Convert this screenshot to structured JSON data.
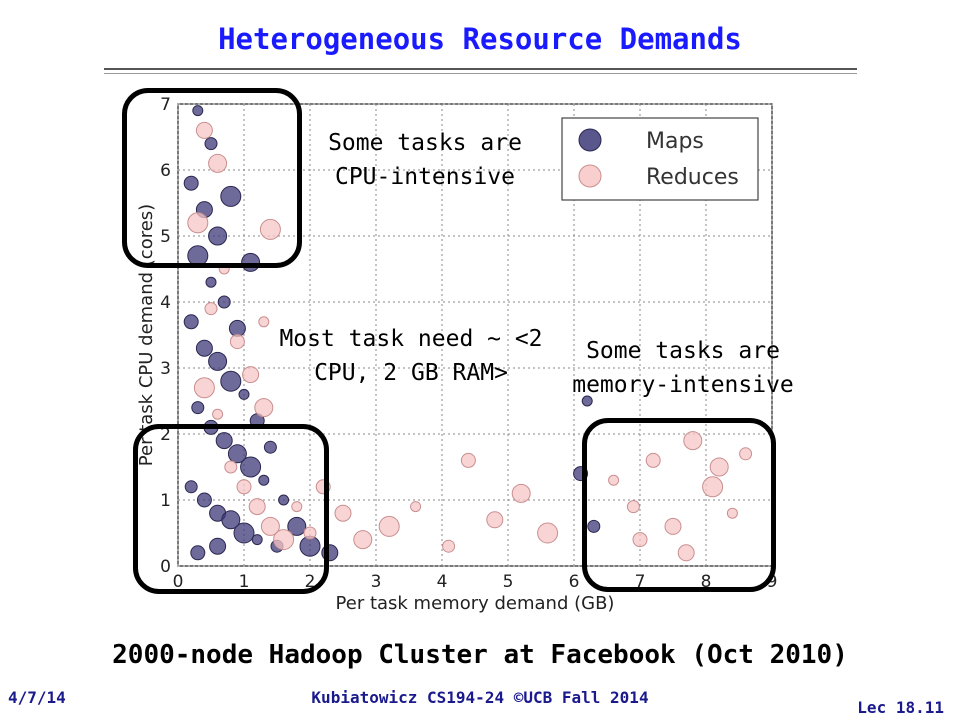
{
  "slide": {
    "title": "Heterogeneous Resource Demands",
    "subtitle": "2000-node Hadoop Cluster at Facebook (Oct 2010)",
    "footer_left": "4/7/14",
    "footer_center": "Kubiatowicz CS194-24 ©UCB Fall 2014",
    "footer_right": "Lec 18.11"
  },
  "annotations": {
    "cpu": "Some tasks are CPU-intensive",
    "most": "Most task need ~ <2 CPU, 2 GB RAM>",
    "memory": "Some tasks are memory-intensive"
  },
  "colors": {
    "maps": "#3d3a78",
    "reduces": "#f7c6c6",
    "box": "#000000",
    "title": "#1a1aff"
  },
  "chart_data": {
    "type": "scatter",
    "xlabel": "Per task memory demand (GB)",
    "ylabel": "Per task CPU demand (cores)",
    "xlim": [
      0,
      9
    ],
    "ylim": [
      0,
      7
    ],
    "xticks": [
      0,
      1,
      2,
      3,
      4,
      5,
      6,
      7,
      8,
      9
    ],
    "yticks": [
      0,
      1,
      2,
      3,
      4,
      5,
      6,
      7
    ],
    "grid": true,
    "legend_position": "top-right",
    "series": [
      {
        "name": "Maps",
        "points": [
          [
            0.3,
            6.9
          ],
          [
            0.5,
            6.4
          ],
          [
            0.2,
            5.8
          ],
          [
            0.4,
            5.4
          ],
          [
            0.6,
            5.0
          ],
          [
            0.3,
            4.7
          ],
          [
            0.5,
            4.3
          ],
          [
            0.7,
            4.0
          ],
          [
            0.2,
            3.7
          ],
          [
            0.4,
            3.3
          ],
          [
            0.6,
            3.1
          ],
          [
            0.8,
            2.8
          ],
          [
            1.0,
            2.6
          ],
          [
            0.3,
            2.4
          ],
          [
            0.5,
            2.1
          ],
          [
            0.7,
            1.9
          ],
          [
            0.9,
            1.7
          ],
          [
            1.1,
            1.5
          ],
          [
            1.3,
            1.3
          ],
          [
            0.2,
            1.2
          ],
          [
            0.4,
            1.0
          ],
          [
            0.6,
            0.8
          ],
          [
            0.8,
            0.7
          ],
          [
            1.0,
            0.5
          ],
          [
            1.2,
            0.4
          ],
          [
            1.5,
            0.3
          ],
          [
            0.3,
            0.2
          ],
          [
            0.6,
            0.3
          ],
          [
            1.8,
            0.6
          ],
          [
            2.0,
            0.3
          ],
          [
            1.6,
            1.0
          ],
          [
            1.4,
            1.8
          ],
          [
            1.2,
            2.2
          ],
          [
            0.9,
            3.6
          ],
          [
            1.1,
            4.6
          ],
          [
            0.8,
            5.6
          ],
          [
            6.2,
            2.5
          ],
          [
            6.3,
            0.6
          ],
          [
            6.1,
            1.4
          ],
          [
            2.3,
            0.2
          ]
        ]
      },
      {
        "name": "Reduces",
        "points": [
          [
            0.4,
            6.6
          ],
          [
            0.6,
            6.1
          ],
          [
            0.3,
            5.2
          ],
          [
            0.7,
            4.5
          ],
          [
            0.5,
            3.9
          ],
          [
            0.9,
            3.4
          ],
          [
            1.1,
            2.9
          ],
          [
            1.3,
            2.4
          ],
          [
            0.4,
            2.7
          ],
          [
            0.6,
            2.3
          ],
          [
            0.8,
            1.5
          ],
          [
            1.0,
            1.2
          ],
          [
            1.2,
            0.9
          ],
          [
            1.4,
            0.6
          ],
          [
            1.6,
            0.4
          ],
          [
            1.8,
            0.9
          ],
          [
            2.0,
            0.5
          ],
          [
            2.2,
            1.2
          ],
          [
            2.5,
            0.8
          ],
          [
            2.8,
            0.4
          ],
          [
            3.2,
            0.6
          ],
          [
            3.6,
            0.9
          ],
          [
            4.1,
            0.3
          ],
          [
            4.4,
            1.6
          ],
          [
            4.8,
            0.7
          ],
          [
            5.2,
            1.1
          ],
          [
            5.6,
            0.5
          ],
          [
            6.6,
            1.3
          ],
          [
            6.9,
            0.9
          ],
          [
            7.2,
            1.6
          ],
          [
            7.5,
            0.6
          ],
          [
            7.8,
            1.9
          ],
          [
            8.1,
            1.2
          ],
          [
            8.4,
            0.8
          ],
          [
            8.6,
            1.7
          ],
          [
            7.0,
            0.4
          ],
          [
            7.7,
            0.2
          ],
          [
            8.2,
            1.5
          ],
          [
            1.4,
            5.1
          ],
          [
            1.3,
            3.7
          ]
        ]
      }
    ]
  }
}
